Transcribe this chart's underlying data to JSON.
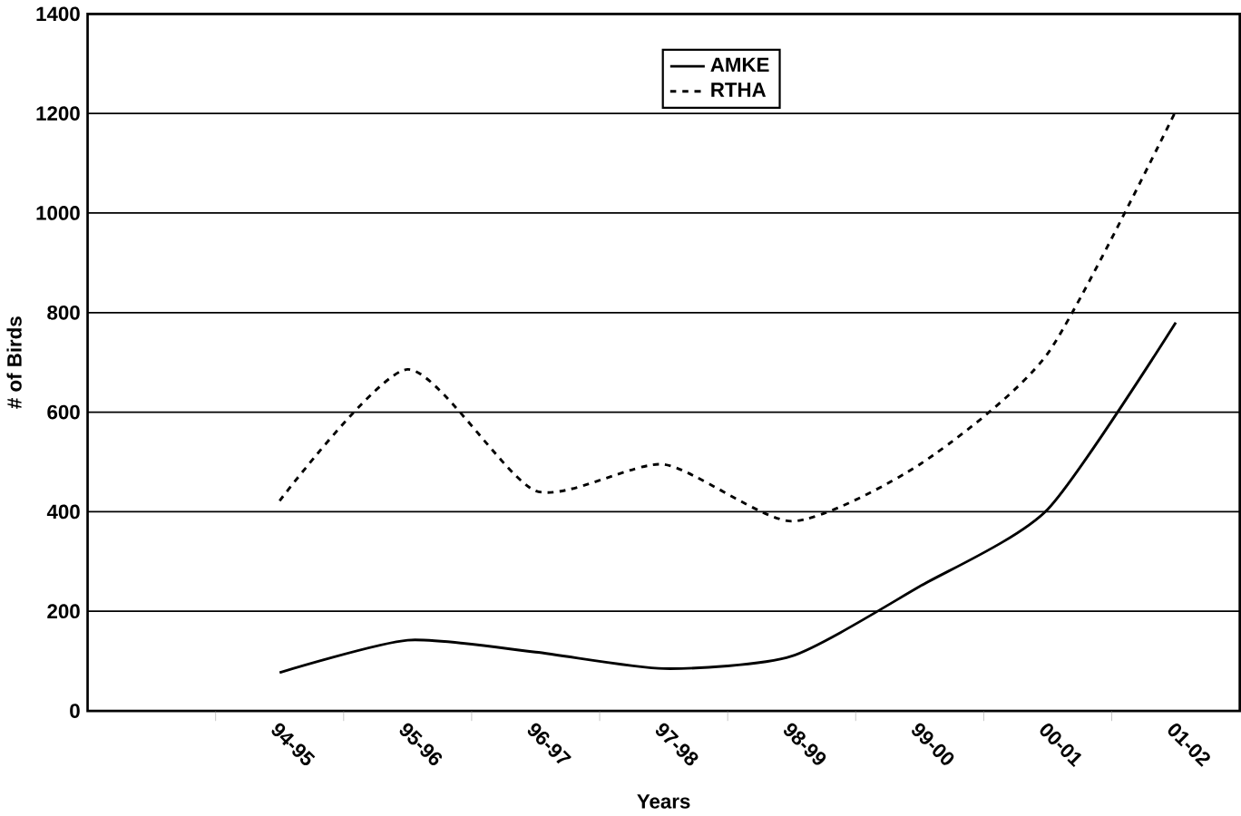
{
  "chart_data": {
    "type": "line",
    "xlabel": "Years",
    "ylabel": "# of Birds",
    "categories": [
      null,
      "94-95",
      "95-96",
      "96-97",
      "97-98",
      "98-99",
      "99-00",
      "00-01",
      "01-02"
    ],
    "series": [
      {
        "name": "AMKE",
        "color": "#000000",
        "line_style": "solid",
        "values": [
          null,
          77,
          142,
          118,
          85,
          110,
          250,
          405,
          780
        ]
      },
      {
        "name": "RTHA",
        "color": "#000000",
        "line_style": "dashed",
        "values": [
          null,
          422,
          686,
          442,
          495,
          381,
          495,
          718,
          1205
        ]
      }
    ],
    "ylim": [
      0,
      1400
    ],
    "yticks": [
      0,
      200,
      400,
      600,
      800,
      1000,
      1200,
      1400
    ],
    "grid": "y",
    "legend": "top",
    "marker": "none"
  }
}
